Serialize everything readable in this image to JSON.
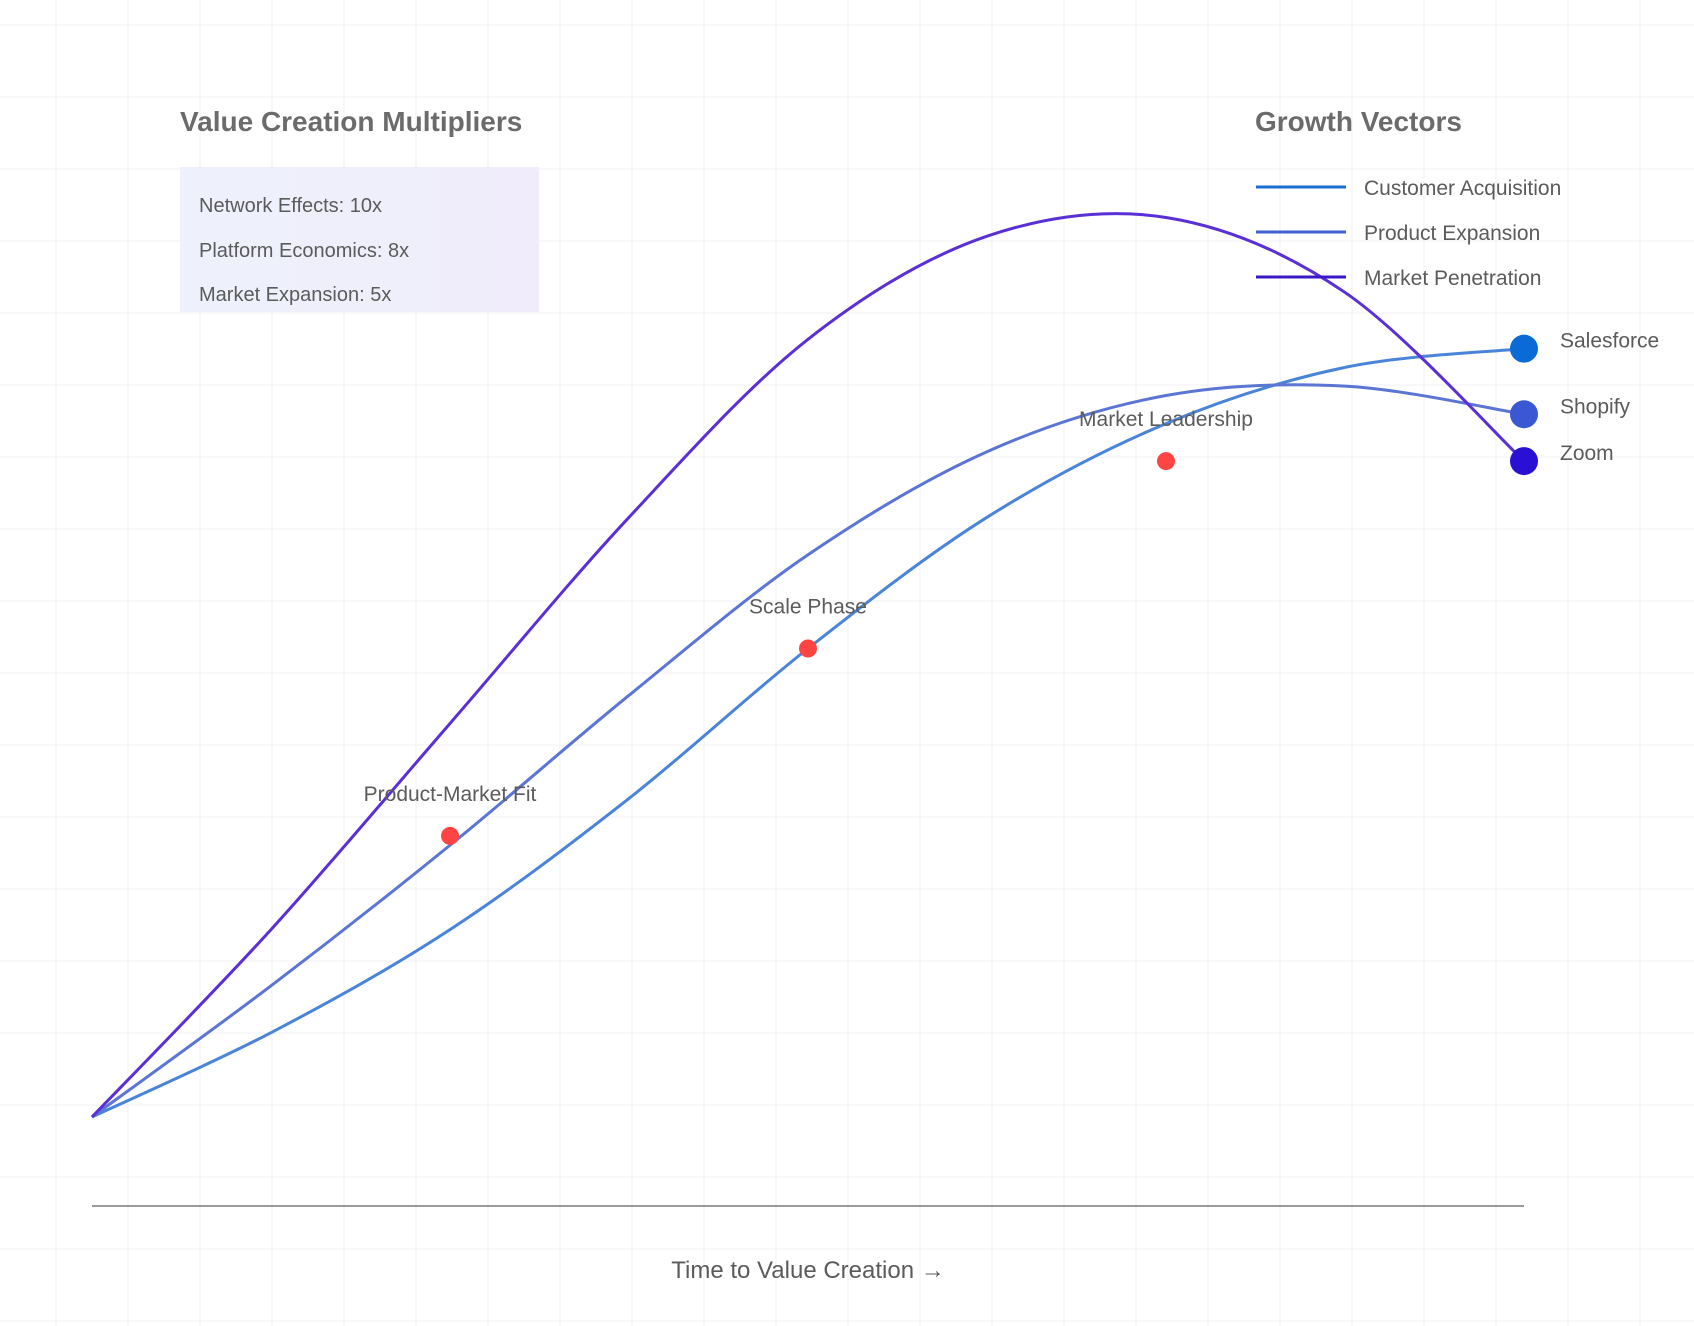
{
  "chart_data": {
    "type": "line",
    "title": "",
    "xlabel": "Time to Value Creation →",
    "ylabel": "",
    "xlim": [
      0,
      4
    ],
    "ylim": [
      0,
      100
    ],
    "grid": true,
    "legend": {
      "title": "Growth Vectors",
      "placement": "top-right",
      "entries": [
        "Customer Acquisition",
        "Product Expansion",
        "Market Penetration"
      ]
    },
    "series": [
      {
        "name": "Customer Acquisition",
        "color": "#4a84d8",
        "legend_color": "#1a6fcf",
        "end_label": "Salesforce",
        "end_color": "#0a6bd6",
        "points": [
          [
            0,
            0
          ],
          [
            0.5,
            9
          ],
          [
            1,
            20
          ],
          [
            1.5,
            34
          ],
          [
            2,
            50
          ],
          [
            2.5,
            64
          ],
          [
            3,
            74
          ],
          [
            3.5,
            80
          ],
          [
            4,
            82
          ]
        ]
      },
      {
        "name": "Product Expansion",
        "color": "#5b75d4",
        "legend_color": "#3f5fd0",
        "end_label": "Shopify",
        "end_color": "#3a58d2",
        "points": [
          [
            0,
            0
          ],
          [
            0.5,
            14
          ],
          [
            1,
            29
          ],
          [
            1.5,
            45
          ],
          [
            2,
            60
          ],
          [
            2.5,
            71
          ],
          [
            3,
            77
          ],
          [
            3.5,
            78
          ],
          [
            4,
            75
          ]
        ]
      },
      {
        "name": "Market Penetration",
        "color": "#5a30d6",
        "legend_color": "#3a18c6",
        "end_label": "Zoom",
        "end_color": "#2a0fd4",
        "points": [
          [
            0,
            0
          ],
          [
            0.5,
            20
          ],
          [
            1,
            42
          ],
          [
            1.5,
            64
          ],
          [
            2,
            83
          ],
          [
            2.5,
            94
          ],
          [
            3,
            96
          ],
          [
            3.5,
            88
          ],
          [
            4,
            70
          ]
        ]
      }
    ],
    "milestones": [
      {
        "label": "Product-Market Fit",
        "x": 1,
        "y": 30,
        "color": "#ff4444"
      },
      {
        "label": "Scale Phase",
        "x": 2,
        "y": 50,
        "color": "#ff4444"
      },
      {
        "label": "Market Leadership",
        "x": 3,
        "y": 70,
        "color": "#ff4444"
      }
    ],
    "annotation_panel": {
      "title": "Value Creation Multipliers",
      "items": [
        "Network Effects: 10x",
        "Platform Economics: 8x",
        "Market Expansion: 5x"
      ]
    }
  }
}
